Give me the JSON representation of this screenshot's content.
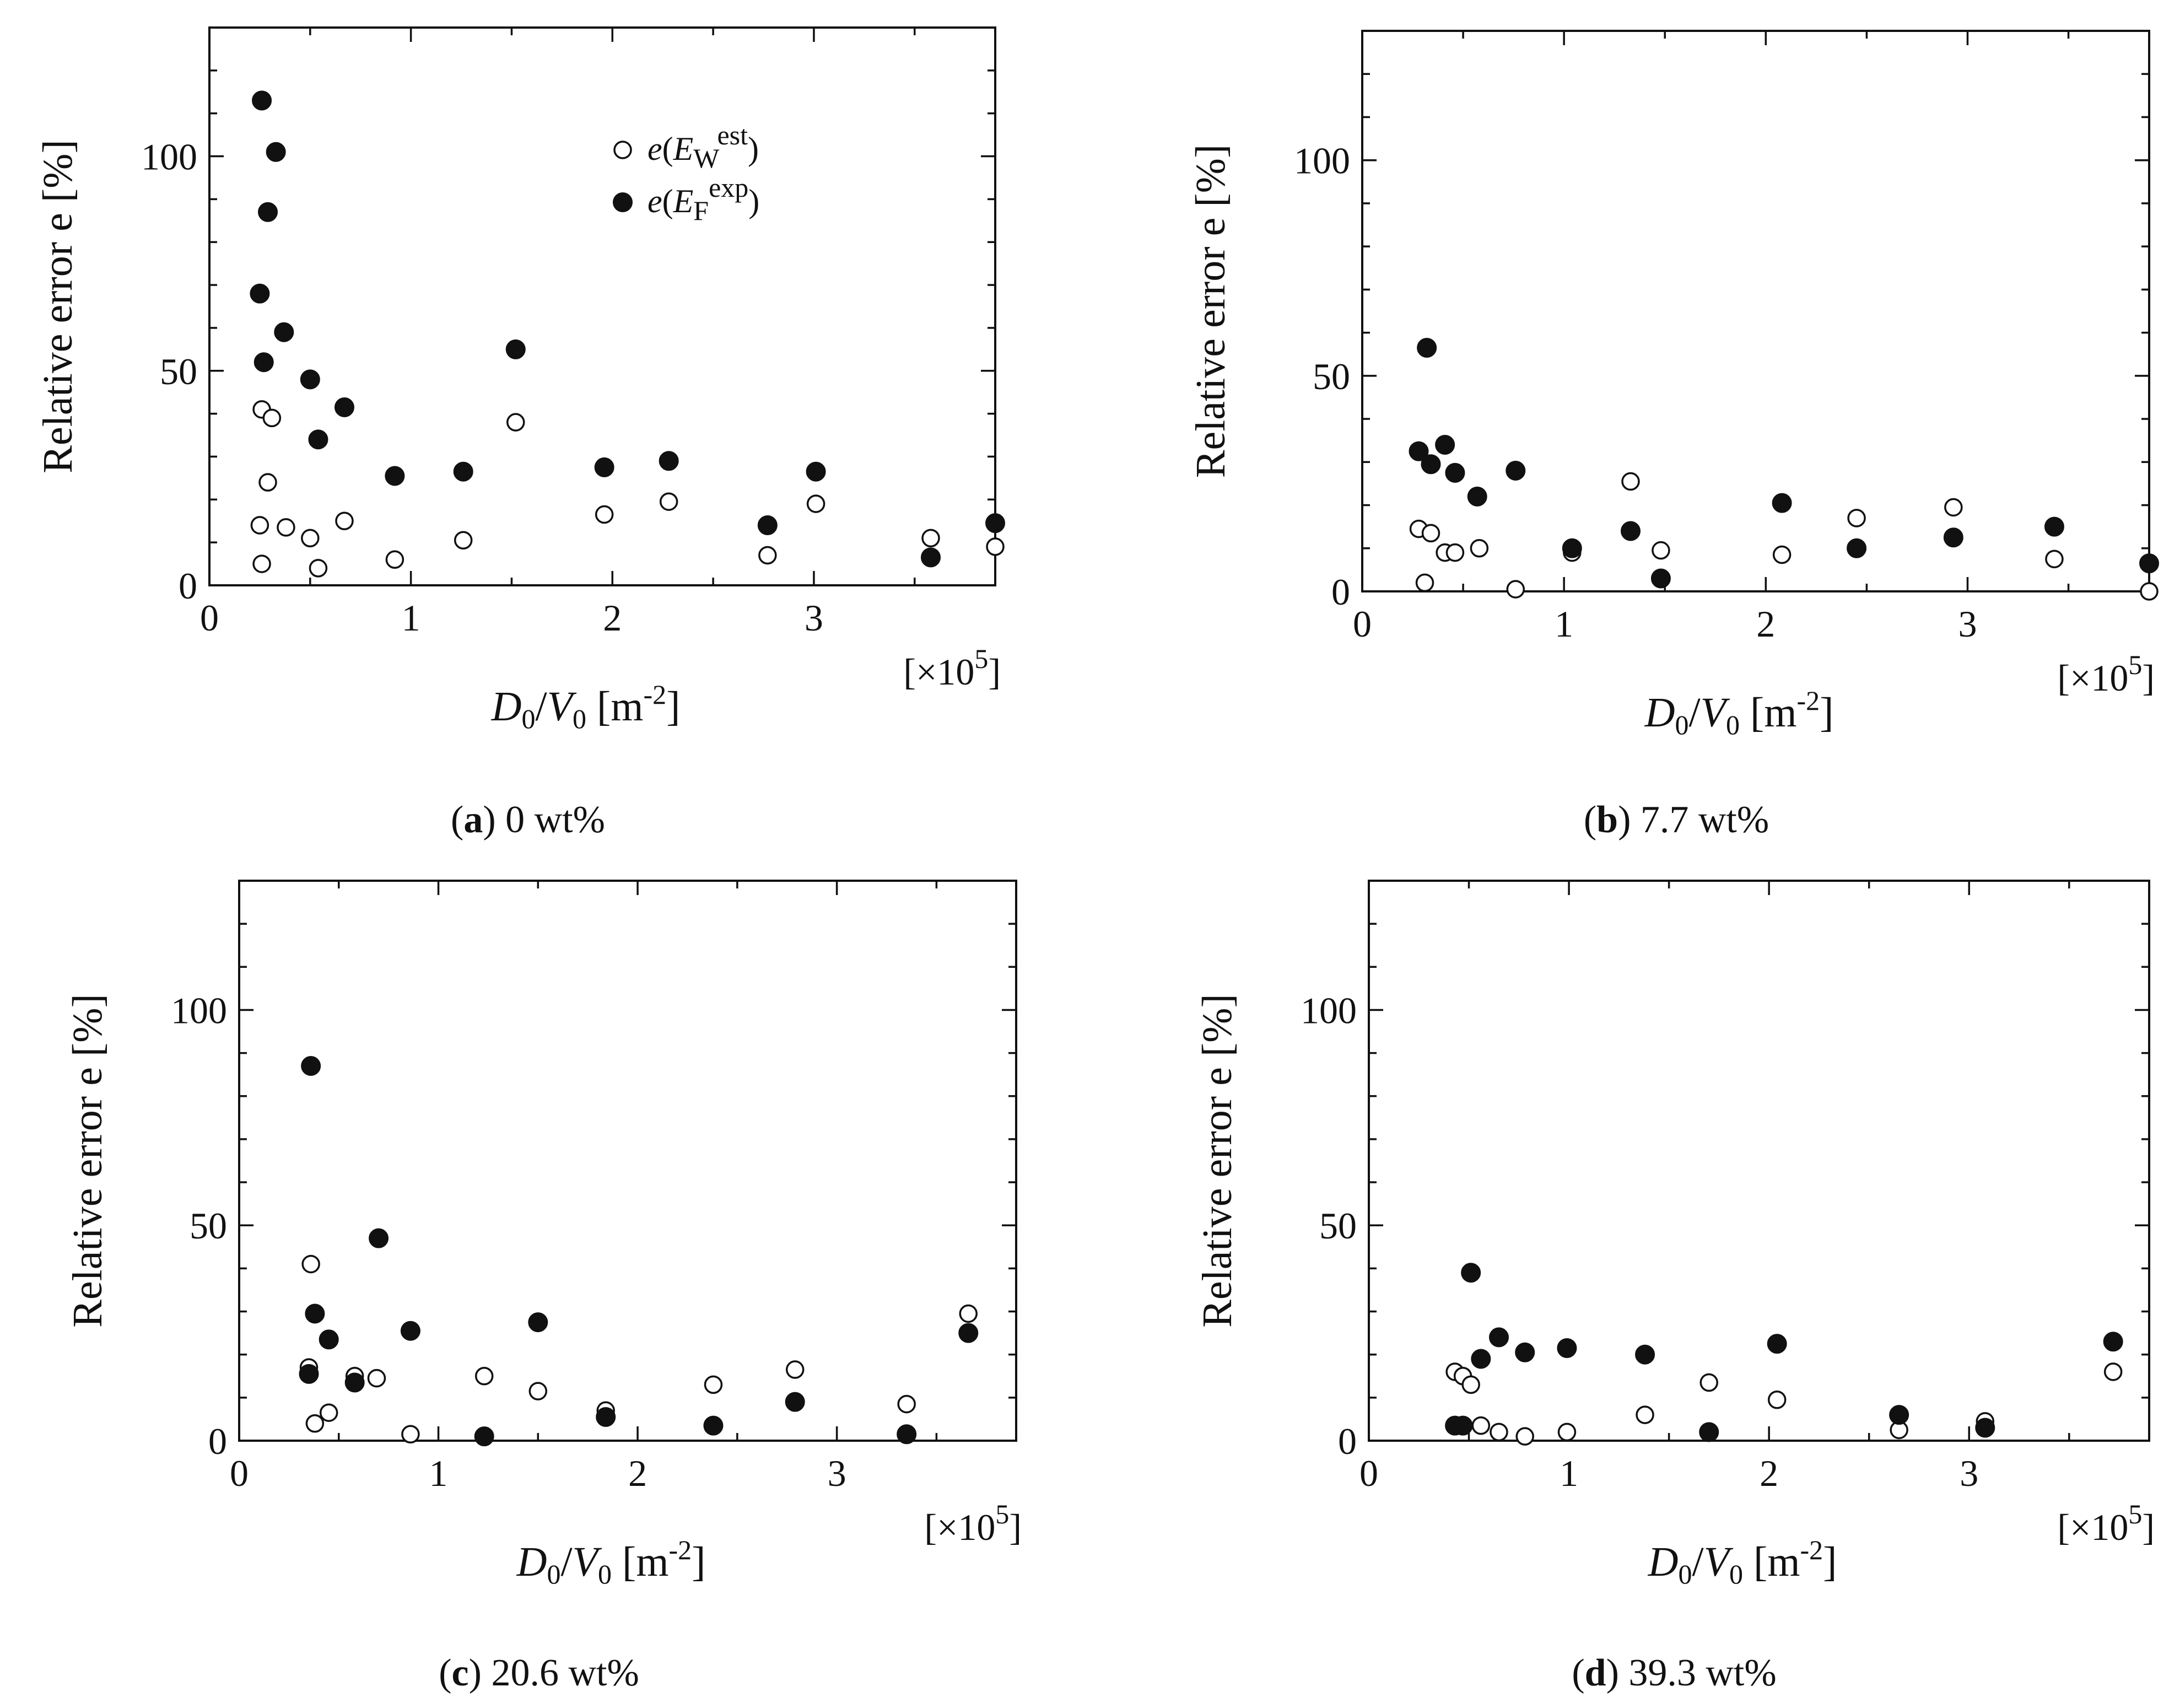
{
  "colors": {
    "ink": "#111111",
    "open_fill": "#ffffff",
    "filled": "#111111",
    "background": "#ffffff"
  },
  "legend": {
    "open": {
      "e": "e",
      "E": "E",
      "sub": "W",
      "sup": "est",
      "icon": "open-circle-icon"
    },
    "filled": {
      "e": "e",
      "E": "E",
      "sub": "F",
      "sup": "exp",
      "icon": "filled-circle-icon"
    }
  },
  "axes_common": {
    "ylabel": "Relative error e [%]",
    "xlabel": {
      "D": "D",
      "D_sub": "0",
      "slash": "/",
      "V": "V",
      "V_sub": "0",
      "unit": " [m",
      "unit_sup": "-2",
      "unit_close": "]"
    },
    "multiplier": {
      "text": "[×10",
      "sup": "5",
      "close": "]"
    },
    "xticks": [
      0,
      1,
      2,
      3
    ],
    "yticks": [
      0,
      50,
      100
    ]
  },
  "chart_data": [
    {
      "type": "scatter",
      "panel": "a",
      "caption": {
        "letter": "a",
        "text": " 0 wt%"
      },
      "xlim": [
        0,
        3.9
      ],
      "ylim": [
        0,
        130
      ],
      "xticks": [
        0,
        1,
        2,
        3
      ],
      "yticks": [
        0,
        50,
        100
      ],
      "legend_position": "top-right",
      "series": [
        {
          "name": "e(EW est)",
          "marker": "open",
          "points": [
            [
              0.26,
              41
            ],
            [
              0.31,
              39
            ],
            [
              0.29,
              24
            ],
            [
              0.25,
              14
            ],
            [
              0.38,
              13.5
            ],
            [
              0.26,
              5
            ],
            [
              0.5,
              11
            ],
            [
              0.54,
              4
            ],
            [
              0.67,
              15
            ],
            [
              0.92,
              6
            ],
            [
              1.26,
              10.5
            ],
            [
              1.52,
              38
            ],
            [
              1.96,
              16.5
            ],
            [
              2.28,
              19.5
            ],
            [
              2.77,
              7
            ],
            [
              3.01,
              19
            ],
            [
              3.58,
              11
            ],
            [
              3.9,
              9
            ]
          ]
        },
        {
          "name": "e(EF exp)",
          "marker": "filled",
          "points": [
            [
              0.26,
              113
            ],
            [
              0.33,
              101
            ],
            [
              0.29,
              87
            ],
            [
              0.25,
              68
            ],
            [
              0.37,
              59
            ],
            [
              0.27,
              52
            ],
            [
              0.5,
              48
            ],
            [
              0.54,
              34
            ],
            [
              0.67,
              41.5
            ],
            [
              0.92,
              25.5
            ],
            [
              1.26,
              26.5
            ],
            [
              1.52,
              55
            ],
            [
              1.96,
              27.5
            ],
            [
              2.28,
              29
            ],
            [
              2.77,
              14
            ],
            [
              3.01,
              26.5
            ],
            [
              3.58,
              6.5
            ],
            [
              3.9,
              14.5
            ]
          ]
        }
      ]
    },
    {
      "type": "scatter",
      "panel": "b",
      "caption": {
        "letter": "b",
        "text": " 7.7 wt%"
      },
      "xlim": [
        0,
        3.9
      ],
      "ylim": [
        0,
        130
      ],
      "xticks": [
        0,
        1,
        2,
        3
      ],
      "yticks": [
        0,
        50,
        100
      ],
      "series": [
        {
          "name": "e(EW est)",
          "marker": "open",
          "points": [
            [
              0.28,
              14.5
            ],
            [
              0.34,
              13.5
            ],
            [
              0.31,
              2
            ],
            [
              0.41,
              9
            ],
            [
              0.46,
              9
            ],
            [
              0.58,
              10
            ],
            [
              0.76,
              0.5
            ],
            [
              1.04,
              9
            ],
            [
              1.33,
              25.5
            ],
            [
              1.48,
              9.5
            ],
            [
              2.08,
              8.5
            ],
            [
              2.45,
              17
            ],
            [
              2.93,
              19.5
            ],
            [
              3.43,
              7.5
            ],
            [
              3.9,
              0
            ]
          ]
        },
        {
          "name": "e(EF exp)",
          "marker": "filled",
          "points": [
            [
              0.32,
              56.5
            ],
            [
              0.28,
              32.5
            ],
            [
              0.34,
              29.5
            ],
            [
              0.41,
              34
            ],
            [
              0.46,
              27.5
            ],
            [
              0.57,
              22
            ],
            [
              0.76,
              28
            ],
            [
              1.04,
              10
            ],
            [
              1.33,
              14
            ],
            [
              1.48,
              3
            ],
            [
              2.08,
              20.5
            ],
            [
              2.45,
              10
            ],
            [
              2.93,
              12.5
            ],
            [
              3.43,
              15
            ],
            [
              3.9,
              6.5
            ]
          ]
        }
      ]
    },
    {
      "type": "scatter",
      "panel": "c",
      "caption": {
        "letter": "c",
        "text": " 20.6 wt%"
      },
      "xlim": [
        0,
        3.9
      ],
      "ylim": [
        0,
        130
      ],
      "xticks": [
        0,
        1,
        2,
        3
      ],
      "yticks": [
        0,
        50,
        100
      ],
      "series": [
        {
          "name": "e(EW est)",
          "marker": "open",
          "points": [
            [
              0.36,
              41
            ],
            [
              0.35,
              17
            ],
            [
              0.38,
              4
            ],
            [
              0.45,
              6.5
            ],
            [
              0.58,
              15
            ],
            [
              0.69,
              14.5
            ],
            [
              0.86,
              1.5
            ],
            [
              1.23,
              15
            ],
            [
              1.5,
              11.5
            ],
            [
              1.84,
              7
            ],
            [
              2.38,
              13
            ],
            [
              2.79,
              16.5
            ],
            [
              3.35,
              8.5
            ],
            [
              3.66,
              29.5
            ]
          ]
        },
        {
          "name": "e(EF exp)",
          "marker": "filled",
          "points": [
            [
              0.36,
              87
            ],
            [
              0.38,
              29.5
            ],
            [
              0.35,
              15.5
            ],
            [
              0.45,
              23.5
            ],
            [
              0.58,
              13.5
            ],
            [
              0.7,
              47
            ],
            [
              0.86,
              25.5
            ],
            [
              1.23,
              1
            ],
            [
              1.5,
              27.5
            ],
            [
              1.84,
              5.5
            ],
            [
              2.38,
              3.5
            ],
            [
              2.79,
              9
            ],
            [
              3.35,
              1.5
            ],
            [
              3.66,
              25
            ]
          ]
        }
      ]
    },
    {
      "type": "scatter",
      "panel": "d",
      "caption": {
        "letter": "d",
        "text": " 39.3 wt%"
      },
      "xlim": [
        0,
        3.9
      ],
      "ylim": [
        0,
        130
      ],
      "xticks": [
        0,
        1,
        2,
        3
      ],
      "yticks": [
        0,
        50,
        100
      ],
      "series": [
        {
          "name": "e(EW est)",
          "marker": "open",
          "points": [
            [
              0.43,
              16
            ],
            [
              0.47,
              15
            ],
            [
              0.51,
              13
            ],
            [
              0.56,
              3.5
            ],
            [
              0.65,
              2
            ],
            [
              0.78,
              1
            ],
            [
              0.99,
              2
            ],
            [
              1.38,
              6
            ],
            [
              1.7,
              13.5
            ],
            [
              2.04,
              9.5
            ],
            [
              2.65,
              2.5
            ],
            [
              3.08,
              4.5
            ],
            [
              3.72,
              16
            ]
          ]
        },
        {
          "name": "e(EF exp)",
          "marker": "filled",
          "points": [
            [
              0.43,
              3.5
            ],
            [
              0.47,
              3.5
            ],
            [
              0.51,
              39
            ],
            [
              0.56,
              19
            ],
            [
              0.65,
              24
            ],
            [
              0.78,
              20.5
            ],
            [
              0.99,
              21.5
            ],
            [
              1.38,
              20
            ],
            [
              1.7,
              2
            ],
            [
              2.04,
              22.5
            ],
            [
              2.65,
              6
            ],
            [
              3.08,
              3
            ],
            [
              3.72,
              23
            ]
          ]
        }
      ]
    }
  ]
}
